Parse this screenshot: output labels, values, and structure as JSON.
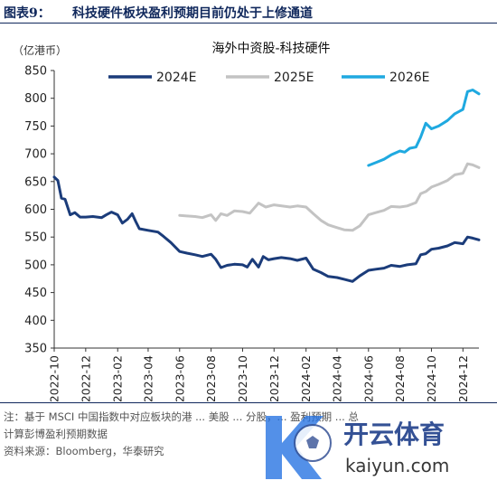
{
  "figure": {
    "number": "图表9：",
    "caption": "科技硬件板块盈利预期目前仍处于上修通道"
  },
  "chart_data": {
    "type": "line",
    "title": "海外中资股-科技硬件",
    "unit_label": "（亿港币）",
    "ylim": [
      350,
      850
    ],
    "yticks": [
      350,
      400,
      450,
      500,
      550,
      600,
      650,
      700,
      750,
      800,
      850
    ],
    "xrange": [
      "2022-10",
      "2025-01"
    ],
    "xticks": [
      "2022-10",
      "2022-12",
      "2023-02",
      "2023-04",
      "2023-06",
      "2023-08",
      "2023-10",
      "2023-12",
      "2024-02",
      "2024-04",
      "2024-06",
      "2024-08",
      "2024-10",
      "2024-12"
    ],
    "legend_position": "top",
    "grid": false,
    "series": [
      {
        "name": "2024E",
        "color": "#1b3c7a",
        "points": [
          [
            "2022-10-01",
            658
          ],
          [
            "2022-10-08",
            652
          ],
          [
            "2022-10-15",
            620
          ],
          [
            "2022-10-22",
            618
          ],
          [
            "2022-11-01",
            590
          ],
          [
            "2022-11-10",
            594
          ],
          [
            "2022-11-20",
            586
          ],
          [
            "2022-12-01",
            586
          ],
          [
            "2022-12-15",
            587
          ],
          [
            "2023-01-01",
            585
          ],
          [
            "2023-01-10",
            590
          ],
          [
            "2023-01-20",
            595
          ],
          [
            "2023-02-01",
            590
          ],
          [
            "2023-02-10",
            575
          ],
          [
            "2023-02-20",
            582
          ],
          [
            "2023-03-01",
            592
          ],
          [
            "2023-03-08",
            578
          ],
          [
            "2023-03-15",
            565
          ],
          [
            "2023-04-01",
            562
          ],
          [
            "2023-04-20",
            559
          ],
          [
            "2023-05-01",
            551
          ],
          [
            "2023-05-15",
            540
          ],
          [
            "2023-06-01",
            524
          ],
          [
            "2023-06-15",
            521
          ],
          [
            "2023-07-01",
            518
          ],
          [
            "2023-07-15",
            515
          ],
          [
            "2023-08-01",
            519
          ],
          [
            "2023-08-10",
            510
          ],
          [
            "2023-08-20",
            495
          ],
          [
            "2023-09-01",
            499
          ],
          [
            "2023-09-15",
            501
          ],
          [
            "2023-10-01",
            500
          ],
          [
            "2023-10-10",
            496
          ],
          [
            "2023-10-20",
            510
          ],
          [
            "2023-11-01",
            496
          ],
          [
            "2023-11-10",
            515
          ],
          [
            "2023-11-20",
            509
          ],
          [
            "2023-12-01",
            511
          ],
          [
            "2023-12-15",
            513
          ],
          [
            "2024-01-01",
            511
          ],
          [
            "2024-01-15",
            508
          ],
          [
            "2024-02-01",
            512
          ],
          [
            "2024-02-15",
            492
          ],
          [
            "2024-03-01",
            486
          ],
          [
            "2024-03-15",
            479
          ],
          [
            "2024-04-01",
            477
          ],
          [
            "2024-04-15",
            474
          ],
          [
            "2024-05-01",
            470
          ],
          [
            "2024-05-15",
            480
          ],
          [
            "2024-06-01",
            490
          ],
          [
            "2024-06-15",
            492
          ],
          [
            "2024-07-01",
            494
          ],
          [
            "2024-07-15",
            499
          ],
          [
            "2024-08-01",
            497
          ],
          [
            "2024-08-15",
            500
          ],
          [
            "2024-09-01",
            502
          ],
          [
            "2024-09-10",
            518
          ],
          [
            "2024-09-20",
            520
          ],
          [
            "2024-10-01",
            528
          ],
          [
            "2024-10-15",
            530
          ],
          [
            "2024-11-01",
            534
          ],
          [
            "2024-11-15",
            540
          ],
          [
            "2024-12-01",
            538
          ],
          [
            "2024-12-10",
            550
          ],
          [
            "2024-12-20",
            548
          ],
          [
            "2025-01-01",
            545
          ]
        ]
      },
      {
        "name": "2025E",
        "color": "#c3c3c3",
        "points": [
          [
            "2023-06-01",
            589
          ],
          [
            "2023-06-15",
            588
          ],
          [
            "2023-07-01",
            587
          ],
          [
            "2023-07-15",
            585
          ],
          [
            "2023-08-01",
            590
          ],
          [
            "2023-08-10",
            580
          ],
          [
            "2023-08-20",
            592
          ],
          [
            "2023-09-01",
            589
          ],
          [
            "2023-09-15",
            597
          ],
          [
            "2023-10-01",
            596
          ],
          [
            "2023-10-15",
            593
          ],
          [
            "2023-11-01",
            611
          ],
          [
            "2023-11-15",
            604
          ],
          [
            "2023-12-01",
            608
          ],
          [
            "2024-01-01",
            604
          ],
          [
            "2024-01-15",
            606
          ],
          [
            "2024-02-01",
            604
          ],
          [
            "2024-02-15",
            592
          ],
          [
            "2024-03-01",
            580
          ],
          [
            "2024-03-15",
            572
          ],
          [
            "2024-04-01",
            567
          ],
          [
            "2024-04-15",
            563
          ],
          [
            "2024-05-01",
            562
          ],
          [
            "2024-05-15",
            570
          ],
          [
            "2024-06-01",
            590
          ],
          [
            "2024-06-15",
            594
          ],
          [
            "2024-07-01",
            598
          ],
          [
            "2024-07-15",
            605
          ],
          [
            "2024-08-01",
            604
          ],
          [
            "2024-08-15",
            606
          ],
          [
            "2024-09-01",
            612
          ],
          [
            "2024-09-10",
            628
          ],
          [
            "2024-09-20",
            632
          ],
          [
            "2024-10-01",
            640
          ],
          [
            "2024-10-15",
            645
          ],
          [
            "2024-11-01",
            652
          ],
          [
            "2024-11-15",
            662
          ],
          [
            "2024-12-01",
            665
          ],
          [
            "2024-12-10",
            682
          ],
          [
            "2024-12-20",
            680
          ],
          [
            "2025-01-01",
            675
          ]
        ]
      },
      {
        "name": "2026E",
        "color": "#1fa9e0",
        "points": [
          [
            "2024-06-01",
            679
          ],
          [
            "2024-06-15",
            684
          ],
          [
            "2024-07-01",
            690
          ],
          [
            "2024-07-15",
            698
          ],
          [
            "2024-08-01",
            705
          ],
          [
            "2024-08-10",
            703
          ],
          [
            "2024-08-20",
            710
          ],
          [
            "2024-09-01",
            712
          ],
          [
            "2024-09-10",
            730
          ],
          [
            "2024-09-20",
            755
          ],
          [
            "2024-10-01",
            745
          ],
          [
            "2024-10-15",
            750
          ],
          [
            "2024-11-01",
            760
          ],
          [
            "2024-11-15",
            772
          ],
          [
            "2024-12-01",
            780
          ],
          [
            "2024-12-10",
            812
          ],
          [
            "2024-12-20",
            815
          ],
          [
            "2025-01-01",
            808
          ]
        ]
      }
    ]
  },
  "notes": {
    "line1": "注：基于 MSCI 中国指数中对应板块的港 ... 美股 ... 分股，... 盈利预期 ... 总",
    "line2": "计算彭博盈利预期数据",
    "line3": "资料来源：Bloomberg，华泰研究"
  },
  "watermark": {
    "brand": "开云体育",
    "url": "kaiyun.com"
  }
}
